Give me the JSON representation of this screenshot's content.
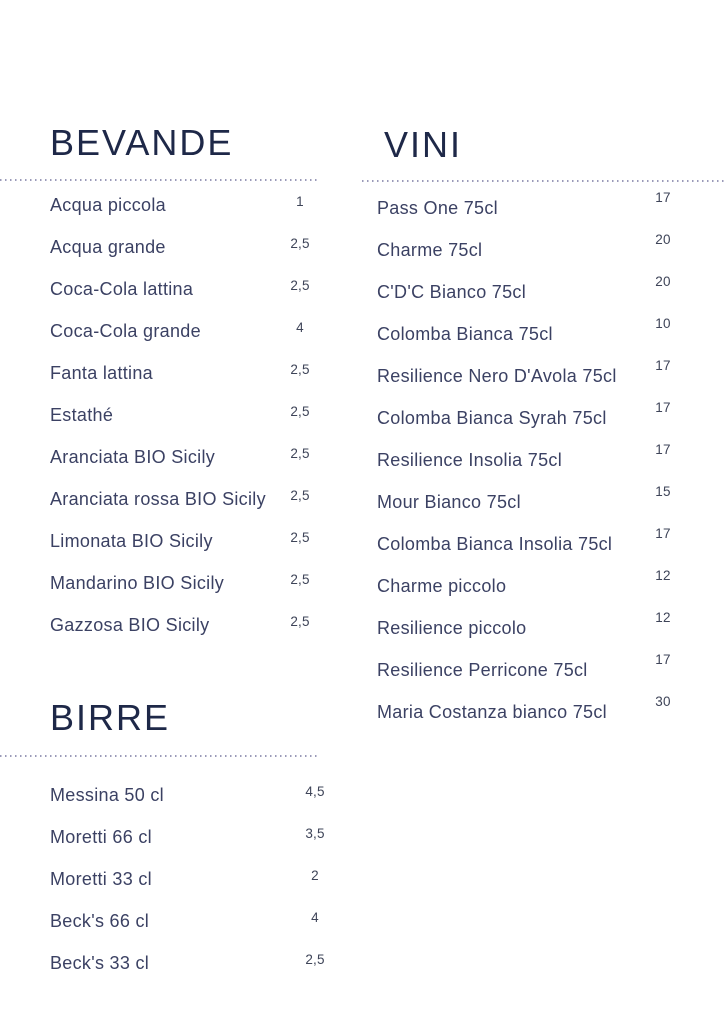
{
  "colors": {
    "background": "#ffffff",
    "title_text": "#1e2848",
    "item_text": "#3b4163",
    "price_text": "#3e4458",
    "divider_dots": "#9a9ab8"
  },
  "sections": [
    {
      "id": "bevande",
      "title": "BEVANDE",
      "items": [
        {
          "name": "Acqua piccola",
          "price": "1"
        },
        {
          "name": "Acqua grande",
          "price": "2,5"
        },
        {
          "name": "Coca-Cola lattina",
          "price": "2,5"
        },
        {
          "name": "Coca-Cola grande",
          "price": "4"
        },
        {
          "name": "Fanta lattina",
          "price": "2,5"
        },
        {
          "name": "Estathé",
          "price": "2,5"
        },
        {
          "name": "Aranciata BIO Sicily",
          "price": "2,5"
        },
        {
          "name": "Aranciata rossa BIO Sicily",
          "price": "2,5"
        },
        {
          "name": "Limonata BIO Sicily",
          "price": "2,5"
        },
        {
          "name": "Mandarino BIO Sicily",
          "price": "2,5"
        },
        {
          "name": "Gazzosa BIO Sicily",
          "price": "2,5"
        }
      ]
    },
    {
      "id": "vini",
      "title": "VINI",
      "items": [
        {
          "name": "Pass One 75cl",
          "price": "17"
        },
        {
          "name": "Charme 75cl",
          "price": "20"
        },
        {
          "name": "C'D'C Bianco 75cl",
          "price": "20"
        },
        {
          "name": "Colomba Bianca 75cl",
          "price": "10"
        },
        {
          "name": "Resilience Nero D'Avola 75cl",
          "price": "17"
        },
        {
          "name": "Colomba Bianca Syrah 75cl",
          "price": "17"
        },
        {
          "name": "Resilience Insolia 75cl",
          "price": "17"
        },
        {
          "name": "Mour Bianco 75cl",
          "price": "15"
        },
        {
          "name": "Colomba Bianca Insolia 75cl",
          "price": "17"
        },
        {
          "name": "Charme piccolo",
          "price": "12"
        },
        {
          "name": "Resilience piccolo",
          "price": "12"
        },
        {
          "name": "Resilience Perricone 75cl",
          "price": "17"
        },
        {
          "name": "Maria Costanza bianco 75cl",
          "price": "30"
        }
      ]
    },
    {
      "id": "birre",
      "title": "BIRRE",
      "items": [
        {
          "name": "Messina 50 cl",
          "price": "4,5"
        },
        {
          "name": "Moretti 66 cl",
          "price": "3,5"
        },
        {
          "name": "Moretti 33 cl",
          "price": "2"
        },
        {
          "name": "Beck's 66 cl",
          "price": "4"
        },
        {
          "name": "Beck's 33 cl",
          "price": "2,5"
        }
      ]
    }
  ]
}
